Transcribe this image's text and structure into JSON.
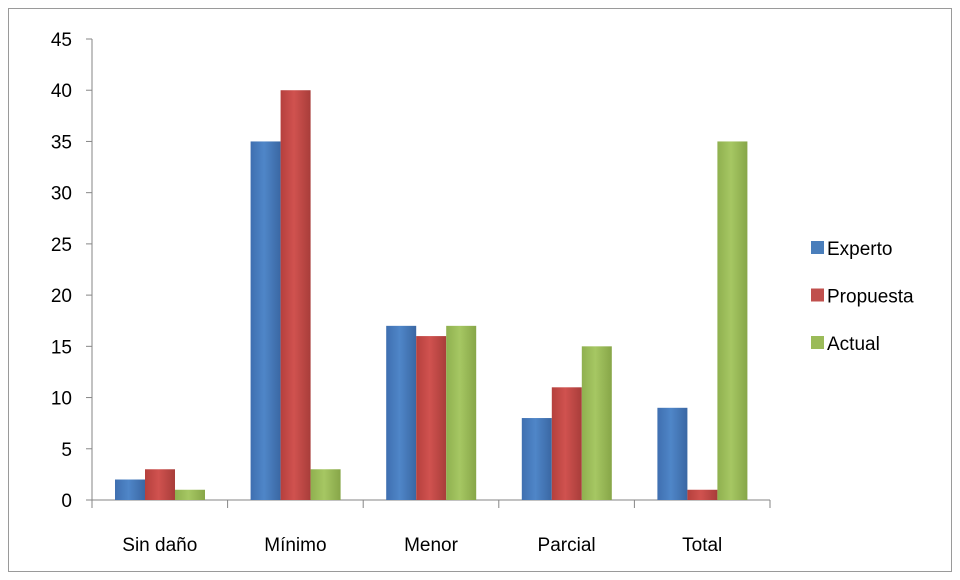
{
  "chart_data": {
    "type": "bar",
    "categories": [
      "Sin daño",
      "Mínimo",
      "Menor",
      "Parcial",
      "Total"
    ],
    "series": [
      {
        "name": "Experto",
        "values": [
          2,
          35,
          17,
          8,
          9
        ],
        "color": "#4a7ebb"
      },
      {
        "name": "Propuesta",
        "values": [
          3,
          40,
          16,
          11,
          1
        ],
        "color": "#c0504d"
      },
      {
        "name": "Actual",
        "values": [
          1,
          3,
          17,
          15,
          35
        ],
        "color": "#9bbb59"
      }
    ],
    "ylim": [
      0,
      45
    ],
    "yticks": [
      0,
      5,
      10,
      15,
      20,
      25,
      30,
      35,
      40,
      45
    ],
    "grid": false,
    "legend": "right"
  }
}
